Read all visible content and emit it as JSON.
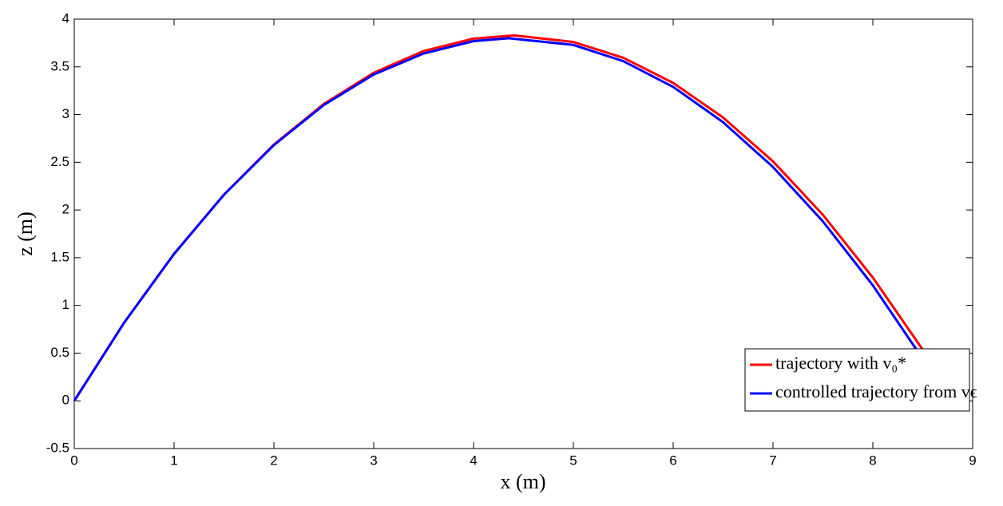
{
  "chart_data": {
    "type": "line",
    "xlabel": "x (m)",
    "ylabel": "z (m)",
    "xlim": [
      0,
      9
    ],
    "xticks": [
      0,
      1,
      2,
      3,
      4,
      5,
      6,
      7,
      8,
      9
    ],
    "ylim": [
      -0.5,
      4
    ],
    "yticks": [
      -0.5,
      0,
      0.5,
      1,
      1.5,
      2,
      2.5,
      3,
      3.5,
      4
    ],
    "grid": false,
    "legend": "lower-right",
    "series": [
      {
        "name": "trajectory with v₀*",
        "color": "#ff0000",
        "x": [
          0,
          0.5,
          1,
          1.5,
          2,
          2.5,
          3,
          3.5,
          4,
          4.41,
          5,
          5.5,
          6,
          6.5,
          7,
          7.5,
          8,
          8.5,
          8.82
        ],
        "values": [
          0,
          0.819,
          1.54,
          2.162,
          2.686,
          3.111,
          3.438,
          3.666,
          3.796,
          3.83,
          3.761,
          3.595,
          3.332,
          2.969,
          2.509,
          1.949,
          1.292,
          0.536,
          0
        ]
      },
      {
        "name": "controlled trajectory from vϵ",
        "color": "#0000ff",
        "x": [
          0,
          0.5,
          1,
          1.5,
          2,
          2.5,
          3,
          3.5,
          4,
          4.35,
          5,
          5.5,
          6,
          6.5,
          7,
          7.5,
          8,
          8.5,
          8.8
        ],
        "values": [
          0,
          0.82,
          1.54,
          2.16,
          2.68,
          3.1,
          3.42,
          3.64,
          3.77,
          3.8,
          3.73,
          3.56,
          3.29,
          2.92,
          2.45,
          1.88,
          1.21,
          0.44,
          -0.05
        ]
      }
    ]
  }
}
